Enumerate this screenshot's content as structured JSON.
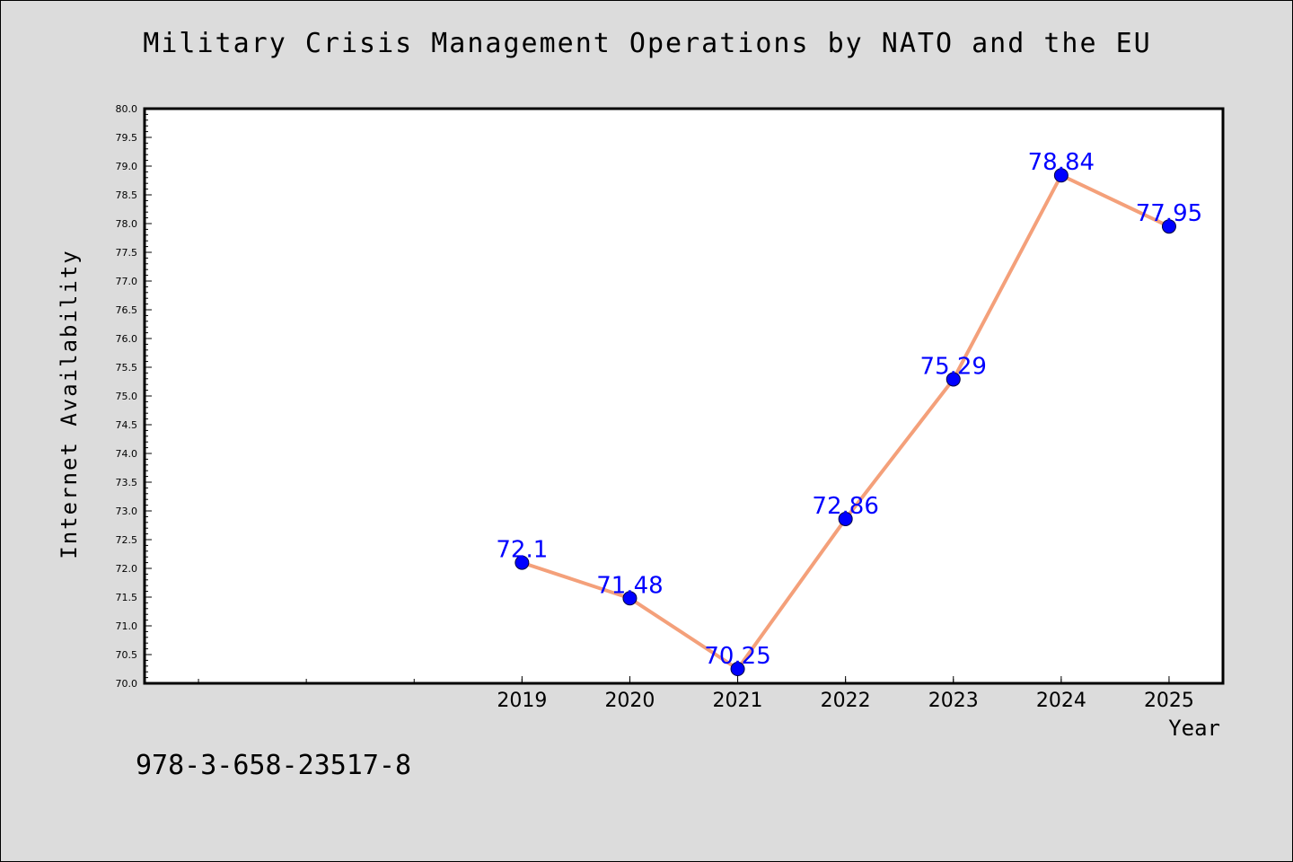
{
  "colors": {
    "background": "#dcdcdc",
    "plot_background": "#ffffff",
    "line": "#f4a07a",
    "marker": "#0000ff",
    "data_label": "#0000ff"
  },
  "figure": {
    "title": "Military Crisis Management Operations by NATO and the EU",
    "caption": "978-3-658-23517-8"
  },
  "chart_data": {
    "type": "line",
    "title": "Military Crisis Management Operations by NATO and the EU",
    "xlabel": "Year",
    "ylabel": "Internet Availability",
    "x": [
      "2019",
      "2020",
      "2021",
      "2022",
      "2023",
      "2024",
      "2025"
    ],
    "series": [
      {
        "values": [
          72.1,
          71.48,
          70.25,
          72.86,
          75.29,
          78.84,
          77.95
        ]
      }
    ],
    "data_labels": [
      "72.1",
      "71.48",
      "70.25",
      "72.86",
      "75.29",
      "78.84",
      "77.95"
    ],
    "ylim": [
      70.0,
      80.0
    ],
    "y_ticks": [
      "70.0",
      "70.5",
      "71.0",
      "71.5",
      "72.0",
      "72.5",
      "73.0",
      "73.5",
      "74.0",
      "74.5",
      "75.0",
      "75.5",
      "76.0",
      "76.5",
      "77.0",
      "77.5",
      "78.0",
      "78.5",
      "79.0",
      "79.5",
      "80.0"
    ],
    "xlim": [
      2015.5,
      2025.5
    ],
    "grid": false,
    "marker": "circle"
  }
}
